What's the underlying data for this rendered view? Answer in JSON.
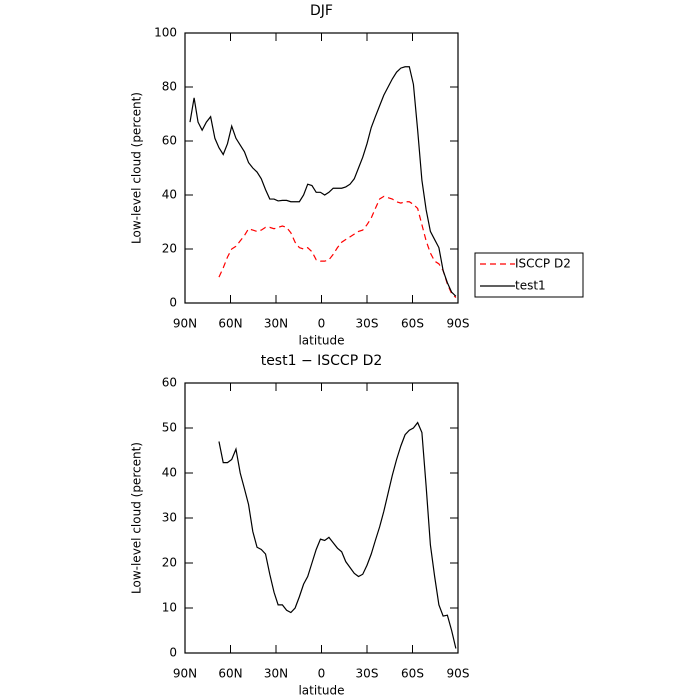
{
  "chart_data": [
    {
      "type": "line",
      "title": "DJF",
      "xlabel": "latitude",
      "ylabel": "Low-level cloud (percent)",
      "x": [
        86.7,
        84,
        81.4,
        78.7,
        75.9,
        73.1,
        70.3,
        67.6,
        64.8,
        62,
        59.2,
        56.4,
        53.6,
        50.8,
        48.1,
        45.3,
        42.5,
        39.7,
        36.9,
        34.1,
        31.3,
        28.6,
        25.8,
        23,
        20.2,
        17.4,
        14.6,
        11.8,
        9.1,
        6.3,
        3.5,
        0.7,
        -2.1,
        -4.9,
        -7.7,
        -10.5,
        -13.3,
        -16,
        -18.8,
        -21.6,
        -24.4,
        -27.2,
        -30,
        -32.8,
        -35.5,
        -38.3,
        -41.1,
        -43.9,
        -46.7,
        -49.5,
        -52.3,
        -55.1,
        -57.9,
        -60.6,
        -63.4,
        -66.2,
        -69,
        -71.8,
        -74.6,
        -77.4,
        -80.2,
        -83,
        -85.8,
        -88.6
      ],
      "series": [
        {
          "name": "ISCCP D2",
          "color": "#ff0000",
          "linestyle": "dashed",
          "values": [
            null,
            null,
            null,
            null,
            null,
            null,
            null,
            9.6,
            13,
            17,
            20,
            21,
            23,
            25,
            27.5,
            27,
            26.5,
            27,
            28,
            28,
            27.5,
            28,
            28.5,
            28,
            26,
            22.5,
            20.5,
            20,
            20.5,
            19,
            16,
            15.5,
            15.5,
            16,
            18,
            20.5,
            22.5,
            23.5,
            24.5,
            25.5,
            26.5,
            27,
            29,
            31.5,
            35,
            38.5,
            39.5,
            39,
            38.5,
            37.5,
            37,
            37.5,
            37.5,
            36.5,
            35,
            29,
            23,
            18.5,
            15.5,
            14.5,
            12,
            7,
            3.5,
            2
          ]
        },
        {
          "name": "test1",
          "color": "#000000",
          "linestyle": "solid",
          "values": [
            67,
            76,
            67,
            64,
            67,
            69,
            61,
            57.5,
            55,
            59,
            65.5,
            61,
            58.5,
            56,
            52,
            50,
            48.5,
            46,
            42,
            38.5,
            38.5,
            37.8,
            38,
            38,
            37.5,
            37.5,
            37.5,
            40,
            44,
            43.5,
            41,
            41,
            40,
            41,
            42.5,
            42.5,
            42.5,
            43,
            44,
            46,
            50,
            54,
            59,
            65,
            69,
            73,
            77,
            80,
            83,
            85.5,
            87,
            87.5,
            87.5,
            81,
            64,
            45.5,
            34.5,
            26.5,
            23.5,
            20.5,
            12,
            7.5,
            4,
            2.5
          ]
        }
      ],
      "xlim": [
        90,
        -90
      ],
      "xticks": [
        {
          "value": 90,
          "label": "90N"
        },
        {
          "value": 60,
          "label": "60N"
        },
        {
          "value": 30,
          "label": "30N"
        },
        0,
        {
          "value": -30,
          "label": "30S"
        },
        {
          "value": -60,
          "label": "60S"
        },
        {
          "value": -90,
          "label": "90S"
        }
      ],
      "ylim": [
        0,
        100
      ],
      "yticks": [
        0,
        20,
        40,
        60,
        80,
        100
      ],
      "legend": "right"
    },
    {
      "type": "line",
      "title": "test1 − ISCCP D2",
      "xlabel": "latitude",
      "ylabel": "Low-level cloud (percent)",
      "x": [
        86.7,
        84,
        81.4,
        78.7,
        75.9,
        73.1,
        70.3,
        67.6,
        64.8,
        62,
        59.2,
        56.4,
        53.6,
        50.8,
        48.1,
        45.3,
        42.5,
        39.7,
        36.9,
        34.1,
        31.3,
        28.6,
        25.8,
        23,
        20.2,
        17.4,
        14.6,
        11.8,
        9.1,
        6.3,
        3.5,
        0.7,
        -2.1,
        -4.9,
        -7.7,
        -10.5,
        -13.3,
        -16,
        -18.8,
        -21.6,
        -24.4,
        -27.2,
        -30,
        -32.8,
        -35.5,
        -38.3,
        -41.1,
        -43.9,
        -46.7,
        -49.5,
        -52.3,
        -55.1,
        -57.9,
        -60.6,
        -63.4,
        -66.2,
        -69,
        -71.8,
        -74.6,
        -77.4,
        -80.2,
        -83,
        -85.8,
        -88.6
      ],
      "values": [
        null,
        null,
        null,
        null,
        null,
        null,
        null,
        47,
        42.3,
        42.3,
        43,
        45.3,
        40,
        36.5,
        33,
        27,
        23.5,
        23,
        22,
        17.5,
        13.5,
        10.7,
        10.7,
        9.5,
        9,
        10,
        12.5,
        15.3,
        17,
        20,
        23,
        25.3,
        25,
        25.7,
        24.5,
        23.3,
        22.5,
        20.3,
        19,
        17.7,
        17,
        17.5,
        19.5,
        22,
        25,
        28,
        31.5,
        35.5,
        39.5,
        43,
        46,
        48.5,
        49.5,
        50,
        51.2,
        49,
        37,
        24,
        17,
        10.7,
        8.2,
        8.4,
        5,
        1
      ],
      "color": "#000000",
      "xlim": [
        90,
        -90
      ],
      "xticks": [
        {
          "value": 90,
          "label": "90N"
        },
        {
          "value": 60,
          "label": "60N"
        },
        {
          "value": 30,
          "label": "30N"
        },
        0,
        {
          "value": -30,
          "label": "30S"
        },
        {
          "value": -60,
          "label": "60S"
        },
        {
          "value": -90,
          "label": "90S"
        }
      ],
      "ylim": [
        0,
        60
      ],
      "yticks": [
        0,
        10,
        20,
        30,
        40,
        50,
        60
      ]
    }
  ]
}
